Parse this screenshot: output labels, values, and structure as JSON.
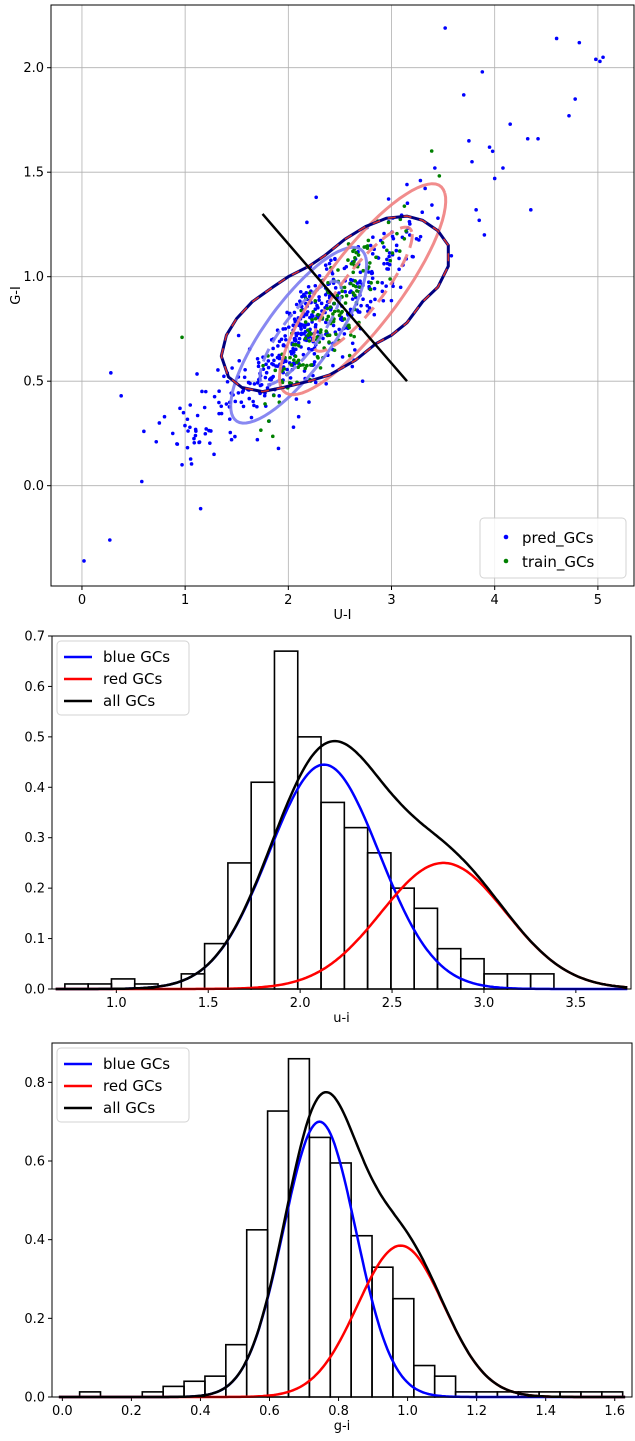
{
  "chart_data": [
    {
      "type": "scatter",
      "xlabel": "U-I",
      "ylabel": "G-I",
      "xlim": [
        -0.3,
        5.35
      ],
      "ylim": [
        -0.48,
        2.3
      ],
      "xticks": [
        0,
        1,
        2,
        3,
        4,
        5
      ],
      "yticks": [
        0.0,
        0.5,
        1.0,
        1.5,
        2.0
      ],
      "xtick_labels": [
        "0",
        "1",
        "2",
        "3",
        "4",
        "5"
      ],
      "ytick_labels": [
        "0.0",
        "0.5",
        "1.0",
        "1.5",
        "2.0"
      ],
      "grid": true,
      "legend": {
        "position": "lower-right",
        "entries": [
          "pred_GCs",
          "train_GCs"
        ]
      },
      "series_colors": {
        "pred_GCs": "#0000ff",
        "train_GCs": "#008000"
      },
      "ellipse_colors": {
        "blue_component": "#7b7bf0",
        "red_component": "#f08080",
        "total_contour": "#000080"
      },
      "pred_GCs_outliers": [
        [
          0.02,
          -0.36
        ],
        [
          0.27,
          -0.26
        ],
        [
          0.28,
          0.54
        ],
        [
          0.38,
          0.43
        ],
        [
          0.58,
          0.02
        ],
        [
          0.6,
          0.26
        ],
        [
          0.72,
          0.21
        ],
        [
          0.75,
          0.3
        ],
        [
          0.8,
          0.33
        ],
        [
          0.88,
          0.25
        ],
        [
          0.92,
          0.2
        ],
        [
          0.97,
          0.1
        ],
        [
          0.95,
          0.37
        ],
        [
          1.1,
          0.24
        ],
        [
          1.15,
          -0.11
        ],
        [
          1.2,
          0.45
        ],
        [
          1.28,
          0.15
        ],
        [
          1.35,
          0.38
        ],
        [
          1.45,
          0.22
        ],
        [
          1.7,
          0.22
        ],
        [
          1.95,
          0.75
        ],
        [
          2.05,
          0.28
        ],
        [
          2.1,
          0.33
        ],
        [
          2.2,
          0.4
        ],
        [
          2.18,
          1.26
        ],
        [
          2.27,
          1.38
        ],
        [
          2.62,
          0.57
        ],
        [
          2.72,
          0.5
        ],
        [
          3.05,
          1.15
        ],
        [
          3.28,
          1.46
        ],
        [
          3.42,
          1.52
        ],
        [
          3.45,
          1.28
        ],
        [
          3.52,
          2.19
        ],
        [
          3.58,
          1.1
        ],
        [
          3.7,
          1.87
        ],
        [
          3.75,
          1.65
        ],
        [
          3.78,
          1.55
        ],
        [
          3.82,
          1.32
        ],
        [
          3.85,
          1.27
        ],
        [
          3.88,
          1.98
        ],
        [
          3.9,
          1.2
        ],
        [
          3.95,
          1.62
        ],
        [
          3.98,
          1.6
        ],
        [
          4.0,
          1.47
        ],
        [
          4.08,
          1.52
        ],
        [
          4.15,
          1.73
        ],
        [
          4.32,
          1.66
        ],
        [
          4.35,
          1.32
        ],
        [
          4.42,
          1.66
        ],
        [
          4.6,
          2.14
        ],
        [
          4.72,
          1.77
        ],
        [
          4.78,
          1.85
        ],
        [
          4.82,
          2.12
        ],
        [
          4.98,
          2.04
        ],
        [
          5.05,
          2.05
        ],
        [
          5.02,
          2.03
        ]
      ],
      "train_GCs_outliers": [
        [
          0.97,
          0.71
        ]
      ],
      "cluster_model": {
        "blue": {
          "center": [
            2.1,
            0.73
          ],
          "sx": 0.3,
          "sy": 0.085,
          "angle_deg": 33,
          "n": 230
        },
        "red": {
          "center": [
            2.72,
            0.93
          ],
          "sx": 0.33,
          "sy": 0.1,
          "angle_deg": 33,
          "n": 150
        },
        "train": {
          "center": [
            2.45,
            0.84
          ],
          "sx": 0.4,
          "sy": 0.095,
          "angle_deg": 33,
          "n": 170
        },
        "tail": {
          "from": [
            1.0,
            0.2
          ],
          "to": [
            1.7,
            0.55
          ],
          "n": 60
        }
      },
      "ellipses": [
        {
          "component": "blue",
          "center": [
            2.12,
            0.73
          ],
          "rx": 0.45,
          "ry": 0.12,
          "angle_deg": 30,
          "style": "dashed"
        },
        {
          "component": "blue",
          "center": [
            2.1,
            0.72
          ],
          "rx": 0.75,
          "ry": 0.22,
          "angle_deg": 30,
          "style": "solid"
        },
        {
          "component": "red",
          "center": [
            2.72,
            0.94
          ],
          "rx": 0.55,
          "ry": 0.13,
          "angle_deg": 30,
          "style": "dashed"
        },
        {
          "component": "red",
          "center": [
            2.72,
            0.94
          ],
          "rx": 0.92,
          "ry": 0.24,
          "angle_deg": 30,
          "style": "solid"
        }
      ],
      "contour": [
        [
          1.35,
          0.62
        ],
        [
          1.4,
          0.72
        ],
        [
          1.5,
          0.8
        ],
        [
          1.65,
          0.88
        ],
        [
          1.85,
          0.95
        ],
        [
          2.0,
          1.0
        ],
        [
          2.2,
          1.05
        ],
        [
          2.35,
          1.1
        ],
        [
          2.55,
          1.18
        ],
        [
          2.75,
          1.24
        ],
        [
          2.95,
          1.28
        ],
        [
          3.15,
          1.29
        ],
        [
          3.3,
          1.27
        ],
        [
          3.45,
          1.22
        ],
        [
          3.55,
          1.15
        ],
        [
          3.55,
          1.05
        ],
        [
          3.45,
          0.95
        ],
        [
          3.3,
          0.88
        ],
        [
          3.15,
          0.78
        ],
        [
          3.0,
          0.72
        ],
        [
          2.85,
          0.68
        ],
        [
          2.65,
          0.6
        ],
        [
          2.4,
          0.53
        ],
        [
          2.2,
          0.5
        ],
        [
          1.95,
          0.47
        ],
        [
          1.75,
          0.45
        ],
        [
          1.55,
          0.47
        ],
        [
          1.42,
          0.52
        ]
      ],
      "divider_line": [
        [
          1.75,
          1.3
        ],
        [
          3.15,
          0.5
        ]
      ]
    },
    {
      "type": "bar",
      "xlabel": "u-i",
      "ylabel": "",
      "xlim": [
        0.65,
        3.8
      ],
      "ylim": [
        0.0,
        0.7
      ],
      "xticks": [
        1.0,
        1.5,
        2.0,
        2.5,
        3.0,
        3.5
      ],
      "yticks": [
        0.0,
        0.1,
        0.2,
        0.3,
        0.4,
        0.5,
        0.6,
        0.7
      ],
      "xtick_labels": [
        "1.0",
        "1.5",
        "2.0",
        "2.5",
        "3.0",
        "3.5"
      ],
      "ytick_labels": [
        "0.0",
        "0.1",
        "0.2",
        "0.3",
        "0.4",
        "0.5",
        "0.6",
        "0.7"
      ],
      "legend": {
        "position": "top-left",
        "entries": [
          "blue GCs",
          "red GCs",
          "all GCs"
        ]
      },
      "series_colors": {
        "blue GCs": "#0000ff",
        "red GCs": "#ff0000",
        "all GCs": "#000000"
      },
      "bin_start": 0.72,
      "bin_width": 0.1267,
      "histogram": [
        0.01,
        0.01,
        0.02,
        0.01,
        0.0,
        0.03,
        0.09,
        0.25,
        0.41,
        0.67,
        0.5,
        0.37,
        0.32,
        0.27,
        0.2,
        0.16,
        0.08,
        0.06,
        0.03,
        0.03,
        0.03
      ],
      "components": [
        {
          "name": "blue GCs",
          "amp": 0.445,
          "mu": 2.13,
          "sigma": 0.3
        },
        {
          "name": "red GCs",
          "amp": 0.25,
          "mu": 2.78,
          "sigma": 0.34
        }
      ]
    },
    {
      "type": "bar",
      "xlabel": "g-i",
      "ylabel": "",
      "xlim": [
        -0.03,
        1.65
      ],
      "ylim": [
        0.0,
        0.9
      ],
      "xticks": [
        0.0,
        0.2,
        0.4,
        0.6,
        0.8,
        1.0,
        1.2,
        1.4,
        1.6
      ],
      "yticks": [
        0.0,
        0.2,
        0.4,
        0.6,
        0.8
      ],
      "xtick_labels": [
        "0.0",
        "0.2",
        "0.4",
        "0.6",
        "0.8",
        "1.0",
        "1.2",
        "1.4",
        "1.6"
      ],
      "ytick_labels": [
        "0.0",
        "0.2",
        "0.4",
        "0.6",
        "0.8"
      ],
      "legend": {
        "position": "top-left",
        "entries": [
          "blue GCs",
          "red GCs",
          "all GCs"
        ]
      },
      "series_colors": {
        "blue GCs": "#0000ff",
        "red GCs": "#ff0000",
        "all GCs": "#000000"
      },
      "bin_start": 0.05,
      "bin_width": 0.0605,
      "histogram": [
        0.013,
        0.0,
        0.0,
        0.013,
        0.027,
        0.04,
        0.053,
        0.133,
        0.425,
        0.727,
        0.86,
        0.66,
        0.595,
        0.41,
        0.33,
        0.25,
        0.08,
        0.053,
        0.013,
        0.013,
        0.013,
        0.013,
        0.013,
        0.013,
        0.013,
        0.013
      ],
      "components": [
        {
          "name": "blue GCs",
          "amp": 0.7,
          "mu": 0.745,
          "sigma": 0.105
        },
        {
          "name": "red GCs",
          "amp": 0.385,
          "mu": 0.98,
          "sigma": 0.125
        }
      ]
    }
  ]
}
